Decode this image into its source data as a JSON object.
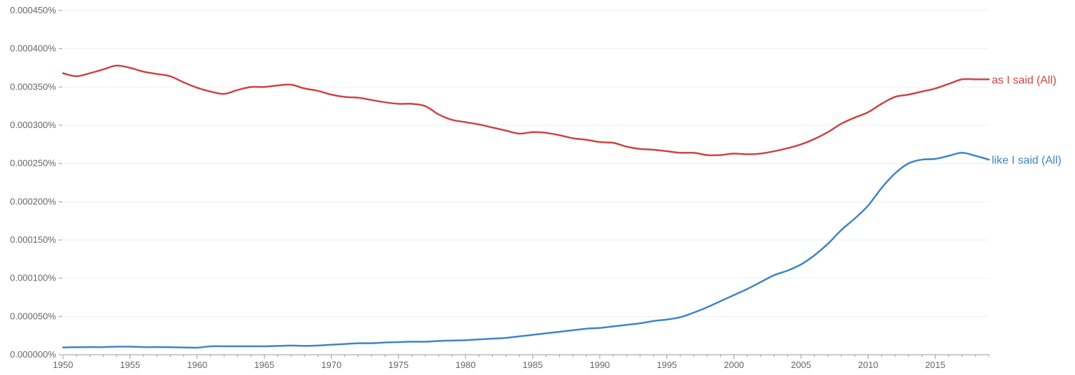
{
  "chart_data": {
    "type": "line",
    "title": "",
    "xlabel": "",
    "ylabel": "",
    "xlim": [
      1950,
      2019
    ],
    "ylim": [
      0,
      0.00045
    ],
    "grid": true,
    "x_ticks": [
      1950,
      1955,
      1960,
      1965,
      1970,
      1975,
      1980,
      1985,
      1990,
      1995,
      2000,
      2005,
      2010,
      2015
    ],
    "x_tick_labels": [
      "1950",
      "1955",
      "1960",
      "1965",
      "1970",
      "1975",
      "1980",
      "1985",
      "1990",
      "1995",
      "2000",
      "2005",
      "2010",
      "2015"
    ],
    "y_ticks": [
      0,
      5e-05,
      0.0001,
      0.00015,
      0.0002,
      0.00025,
      0.0003,
      0.00035,
      0.0004,
      0.00045
    ],
    "y_tick_labels": [
      "0.000000%",
      "0.000050%",
      "0.000100%",
      "0.000150%",
      "0.000200%",
      "0.000250%",
      "0.000300%",
      "0.000350%",
      "0.000400%",
      "0.000450%"
    ],
    "x": [
      1950,
      1951,
      1952,
      1953,
      1954,
      1955,
      1956,
      1957,
      1958,
      1959,
      1960,
      1961,
      1962,
      1963,
      1964,
      1965,
      1966,
      1967,
      1968,
      1969,
      1970,
      1971,
      1972,
      1973,
      1974,
      1975,
      1976,
      1977,
      1978,
      1979,
      1980,
      1981,
      1982,
      1983,
      1984,
      1985,
      1986,
      1987,
      1988,
      1989,
      1990,
      1991,
      1992,
      1993,
      1994,
      1995,
      1996,
      1997,
      1998,
      1999,
      2000,
      2001,
      2002,
      2003,
      2004,
      2005,
      2006,
      2007,
      2008,
      2009,
      2010,
      2011,
      2012,
      2013,
      2014,
      2015,
      2016,
      2017,
      2018,
      2019
    ],
    "series": [
      {
        "name": "as I said (All)",
        "color": "#cc4444",
        "values": [
          0.000368,
          0.000364,
          0.000368,
          0.000373,
          0.000378,
          0.000375,
          0.00037,
          0.000367,
          0.000364,
          0.000356,
          0.000349,
          0.000344,
          0.000341,
          0.000346,
          0.00035,
          0.00035,
          0.000352,
          0.000353,
          0.000348,
          0.000345,
          0.00034,
          0.000337,
          0.000336,
          0.000333,
          0.00033,
          0.000328,
          0.000328,
          0.000325,
          0.000314,
          0.000307,
          0.000304,
          0.000301,
          0.000297,
          0.000293,
          0.000289,
          0.000291,
          0.00029,
          0.000287,
          0.000283,
          0.000281,
          0.000278,
          0.000277,
          0.000272,
          0.000269,
          0.000268,
          0.000266,
          0.000264,
          0.000264,
          0.000261,
          0.000261,
          0.000263,
          0.000262,
          0.000263,
          0.000266,
          0.00027,
          0.000275,
          0.000282,
          0.000291,
          0.000302,
          0.00031,
          0.000317,
          0.000328,
          0.000337,
          0.00034,
          0.000344,
          0.000348,
          0.000354,
          0.00036,
          0.00036,
          0.00036
        ]
      },
      {
        "name": "like I said (All)",
        "color": "#3d85c6",
        "values": [
          9.5e-06,
          9.8e-06,
          1e-05,
          1e-05,
          1.05e-05,
          1.05e-05,
          1e-05,
          1e-05,
          9.8e-06,
          9.5e-06,
          9.2e-06,
          1.1e-05,
          1.1e-05,
          1.1e-05,
          1.1e-05,
          1.1e-05,
          1.15e-05,
          1.2e-05,
          1.15e-05,
          1.2e-05,
          1.3e-05,
          1.4e-05,
          1.5e-05,
          1.5e-05,
          1.6e-05,
          1.65e-05,
          1.7e-05,
          1.7e-05,
          1.8e-05,
          1.85e-05,
          1.9e-05,
          2e-05,
          2.1e-05,
          2.2e-05,
          2.4e-05,
          2.6e-05,
          2.8e-05,
          3e-05,
          3.2e-05,
          3.4e-05,
          3.5e-05,
          3.7e-05,
          3.9e-05,
          4.1e-05,
          4.4e-05,
          4.6e-05,
          4.9e-05,
          5.5e-05,
          6.2e-05,
          7e-05,
          7.8e-05,
          8.6e-05,
          9.5e-05,
          0.000104,
          0.00011,
          0.000118,
          0.00013,
          0.000145,
          0.000163,
          0.000178,
          0.000195,
          0.000218,
          0.000237,
          0.00025,
          0.000255,
          0.000256,
          0.00026,
          0.000264,
          0.00026,
          0.000255
        ]
      }
    ]
  }
}
